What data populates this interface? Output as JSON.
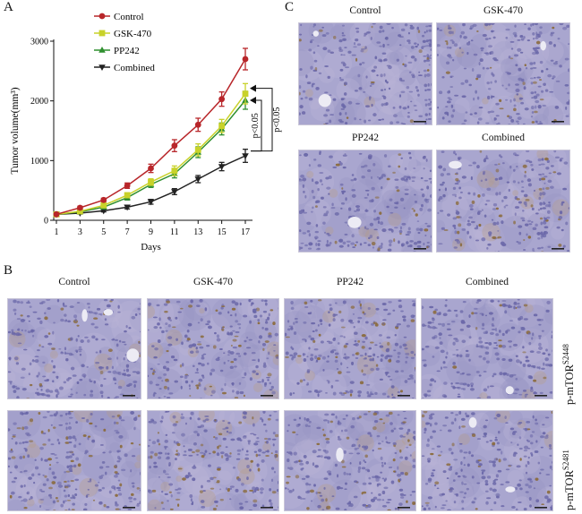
{
  "panels": {
    "A": {
      "letter": "A"
    },
    "B": {
      "letter": "B",
      "columns": [
        "Control",
        "GSK-470",
        "PP242",
        "Combined"
      ],
      "rows": [
        {
          "label": "p-mTOR",
          "superscript": "S2448"
        },
        {
          "label": "p-mTOR",
          "superscript": "S2481"
        }
      ]
    },
    "C": {
      "letter": "C",
      "labels": [
        "Control",
        "GSK-470",
        "PP242",
        "Combined"
      ]
    }
  },
  "colors": {
    "control": "#b8262a",
    "gsk470": "#c8d22a",
    "pp242": "#2f8f2f",
    "combined": "#222222",
    "tissue_base": "#a9a6cf",
    "nuclei": "#6a67a8",
    "brown_stain": "#8a6a3a"
  },
  "chart_data": {
    "type": "line",
    "xlabel": "Days",
    "ylabel": "Tumor volume(mm³)",
    "x": [
      1,
      3,
      5,
      7,
      9,
      11,
      13,
      15,
      17
    ],
    "xlim": [
      1,
      17
    ],
    "ylim": [
      0,
      3000
    ],
    "yticks": [
      0,
      1000,
      2000,
      3000
    ],
    "legend_position": "top-left",
    "series": [
      {
        "name": "Control",
        "color": "#b8262a",
        "marker": "circle",
        "values": [
          100,
          210,
          340,
          580,
          870,
          1250,
          1600,
          2030,
          2700
        ],
        "errors": [
          20,
          25,
          30,
          45,
          70,
          100,
          110,
          120,
          180
        ]
      },
      {
        "name": "GSK-470",
        "color": "#c8d22a",
        "marker": "square",
        "values": [
          100,
          150,
          250,
          420,
          640,
          830,
          1180,
          1580,
          2120
        ],
        "errors": [
          15,
          20,
          30,
          40,
          55,
          80,
          100,
          110,
          170
        ]
      },
      {
        "name": "PP242",
        "color": "#2f8f2f",
        "marker": "triangle",
        "values": [
          100,
          140,
          220,
          380,
          600,
          780,
          1140,
          1530,
          2010
        ],
        "errors": [
          15,
          20,
          25,
          40,
          50,
          70,
          90,
          100,
          150
        ]
      },
      {
        "name": "Combined",
        "color": "#222222",
        "marker": "triangle-down",
        "values": [
          100,
          120,
          160,
          220,
          310,
          480,
          690,
          900,
          1080
        ],
        "errors": [
          10,
          15,
          20,
          30,
          40,
          50,
          60,
          70,
          110
        ]
      }
    ],
    "annotations": [
      "p<0.05",
      "p<0.05"
    ]
  }
}
